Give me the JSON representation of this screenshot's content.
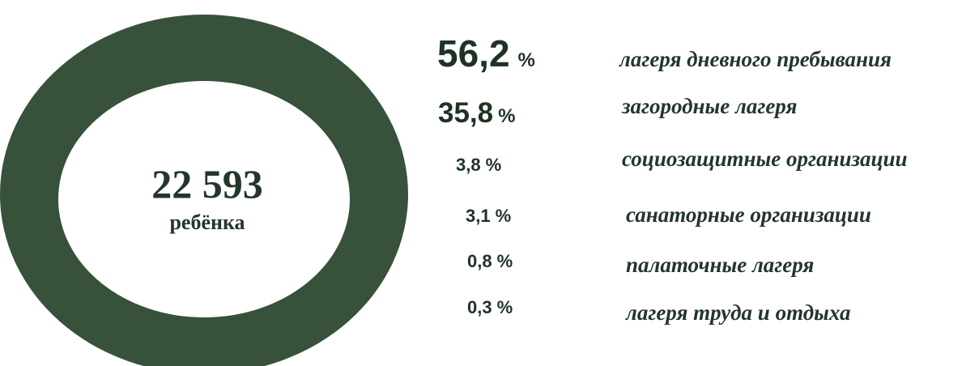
{
  "center": {
    "value": "22 593",
    "label": "ребёнка"
  },
  "items": [
    {
      "value": "56,2",
      "unit": "%",
      "label": "лагеря дневного пребывания"
    },
    {
      "value": "35,8",
      "unit": "%",
      "label": "загородные лагеря"
    },
    {
      "value": "3,8",
      "unit": "%",
      "label": "социозащитные организации"
    },
    {
      "value": "3,1",
      "unit": "%",
      "label": "санаторные организации"
    },
    {
      "value": "0,8",
      "unit": "%",
      "label": "палаточные лагеря"
    },
    {
      "value": "0,3",
      "unit": "%",
      "label": "лагеря труда и отдыха"
    }
  ]
}
